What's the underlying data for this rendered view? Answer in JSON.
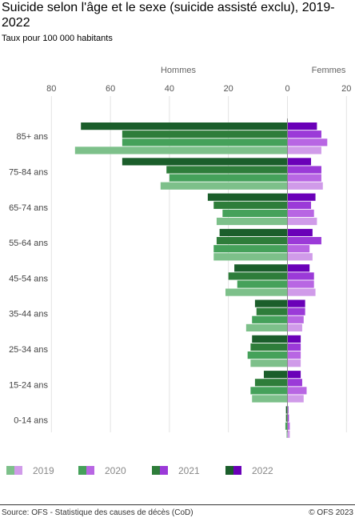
{
  "header": {
    "title": "Suicide selon l'âge et le sexe (suicide assisté exclu), 2019-2022",
    "subtitle": "Taux pour 100 000 habitants"
  },
  "footer": {
    "source": "Source: OFS - Statistique des causes de décès (CoD)",
    "copyright": "© OFS 2023"
  },
  "chart_data": {
    "type": "bar",
    "orientation": "horizontal-population-pyramid",
    "left_label": "Hommes",
    "right_label": "Femmes",
    "x_ticks": [
      "80",
      "60",
      "40",
      "20",
      "0",
      "20"
    ],
    "xlim_left": [
      0,
      80
    ],
    "xlim_right": [
      0,
      20
    ],
    "categories": [
      "85+ ans",
      "75-84 ans",
      "65-74 ans",
      "55-64 ans",
      "45-54 ans",
      "35-44 ans",
      "25-34 ans",
      "15-24 ans",
      "0-14 ans"
    ],
    "grid": true,
    "legend_position": "bottom",
    "series": [
      {
        "name": "2022",
        "color_men": "#1b5e2b",
        "color_women": "#6a00b8",
        "men": [
          70,
          56,
          27,
          23,
          18,
          11,
          12,
          8,
          0.5
        ],
        "women": [
          10,
          8,
          9.5,
          8.5,
          7.5,
          6,
          4.5,
          4.5,
          0.3
        ]
      },
      {
        "name": "2021",
        "color_men": "#2e7d3a",
        "color_women": "#9b3ad8",
        "men": [
          56,
          41,
          25,
          24,
          20,
          10.5,
          12.5,
          11,
          0.5
        ],
        "women": [
          11.5,
          11.5,
          8,
          11.5,
          9,
          6,
          4.5,
          5,
          0.5
        ]
      },
      {
        "name": "2020",
        "color_men": "#45a15a",
        "color_women": "#b866e3",
        "men": [
          56,
          40,
          22,
          25,
          17,
          12,
          13.5,
          12.5,
          0.7
        ],
        "women": [
          13.5,
          11.5,
          9,
          7.5,
          9,
          5.5,
          4.5,
          6.5,
          0.8
        ]
      },
      {
        "name": "2019",
        "color_men": "#7dc08a",
        "color_women": "#d09be9",
        "men": [
          72,
          43,
          24,
          25,
          21,
          14,
          12.5,
          12,
          0.3
        ],
        "women": [
          11.5,
          12,
          10,
          8.5,
          9.5,
          5,
          4.5,
          5.5,
          0.8
        ]
      }
    ],
    "legend": [
      {
        "label": "2019",
        "color_men": "#7dc08a",
        "color_women": "#d09be9"
      },
      {
        "label": "2020",
        "color_men": "#45a15a",
        "color_women": "#b866e3"
      },
      {
        "label": "2021",
        "color_men": "#2e7d3a",
        "color_women": "#9b3ad8"
      },
      {
        "label": "2022",
        "color_men": "#1b5e2b",
        "color_women": "#6a00b8"
      }
    ]
  }
}
